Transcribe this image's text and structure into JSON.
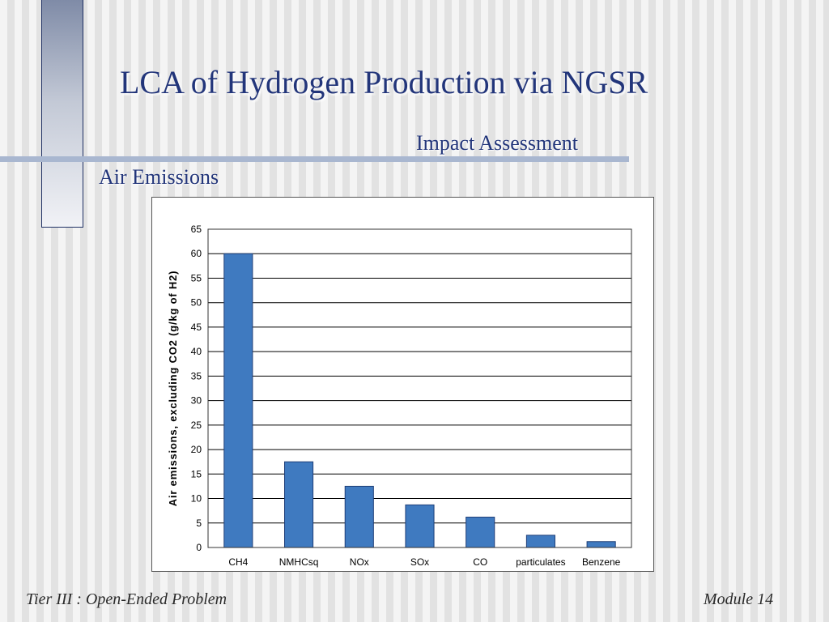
{
  "slide": {
    "title": "LCA of Hydrogen Production via NGSR",
    "subtitle": "Impact Assessment",
    "section": "Air Emissions",
    "footer_left": "Tier III : Open-Ended Problem",
    "footer_right": "Module 14"
  },
  "colors": {
    "title": "#22357a",
    "bar_fill": "#3f7ac0",
    "bar_stroke": "#1f3f78"
  },
  "chart_data": {
    "type": "bar",
    "categories": [
      "CH4",
      "NMHCsq",
      "NOx",
      "SOx",
      "CO",
      "particulates",
      "Benzene"
    ],
    "values": [
      60,
      17.5,
      12.5,
      8.7,
      6.2,
      2.5,
      1.2
    ],
    "ylabel": "Air emissions, excluding CO2 (g/kg of H2)",
    "xlabel": "",
    "ylim": [
      0,
      65
    ],
    "yticks": [
      0,
      5,
      10,
      15,
      20,
      25,
      30,
      35,
      40,
      45,
      50,
      55,
      60,
      65
    ],
    "grid": true,
    "legend": "none"
  }
}
